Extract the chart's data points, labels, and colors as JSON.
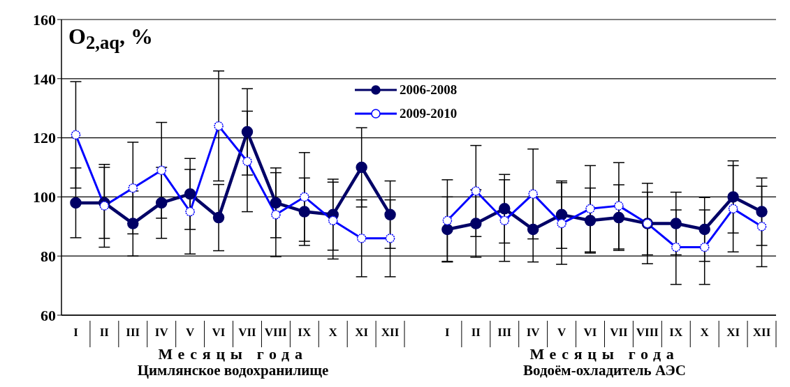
{
  "chart_data": {
    "type": "line",
    "ylabel": "O$_{2,aq}$,  %",
    "xlabel": "Месяцы года",
    "annotations": [
      "Цимлянское водохранилище",
      "Водоём-охладитель АЭС"
    ],
    "categories": [
      "I",
      "II",
      "III",
      "IV",
      "V",
      "VI",
      "VII",
      "VIII",
      "IX",
      "X",
      "XI",
      "XII",
      null,
      "I",
      "II",
      "III",
      "IV",
      "V",
      "VI",
      "VII",
      "VIII",
      "IX",
      "X",
      "XI",
      "XII"
    ],
    "series": [
      {
        "name": "2006-2008",
        "color": "#000066",
        "values": [
          98,
          98,
          91,
          98,
          101,
          93,
          122,
          98,
          95,
          94,
          110,
          94,
          null,
          89,
          91,
          96,
          89,
          94,
          92,
          93,
          91,
          91,
          89,
          100,
          95
        ],
        "errors": [
          11.8,
          12,
          11,
          12,
          12,
          11.2,
          14.6,
          11.8,
          11.4,
          12,
          13.4,
          11.4,
          null,
          11,
          11.4,
          11.6,
          11,
          11.4,
          11,
          11.1,
          10.6,
          10.6,
          10.8,
          12.2,
          11.4
        ]
      },
      {
        "name": "2009-2010",
        "color": "#0000ff",
        "values": [
          121,
          97,
          103,
          109,
          95,
          124,
          112,
          94,
          100,
          92,
          86,
          86,
          null,
          92,
          102,
          92,
          101,
          91,
          96,
          97,
          91,
          83,
          83,
          96,
          90
        ],
        "errors": [
          18,
          14,
          15.5,
          16.2,
          14.3,
          18.6,
          17,
          14.2,
          15,
          13,
          13,
          13,
          null,
          13.8,
          15.4,
          13.8,
          15.2,
          13.8,
          14.6,
          14.6,
          13.6,
          12.6,
          12.6,
          14.6,
          13.6
        ]
      }
    ],
    "ylim": [
      60,
      160
    ],
    "yticks": [
      60,
      80,
      100,
      120,
      140,
      160
    ],
    "grid": "y",
    "legend": "top",
    "marker": "circle",
    "line_style": "solid"
  }
}
